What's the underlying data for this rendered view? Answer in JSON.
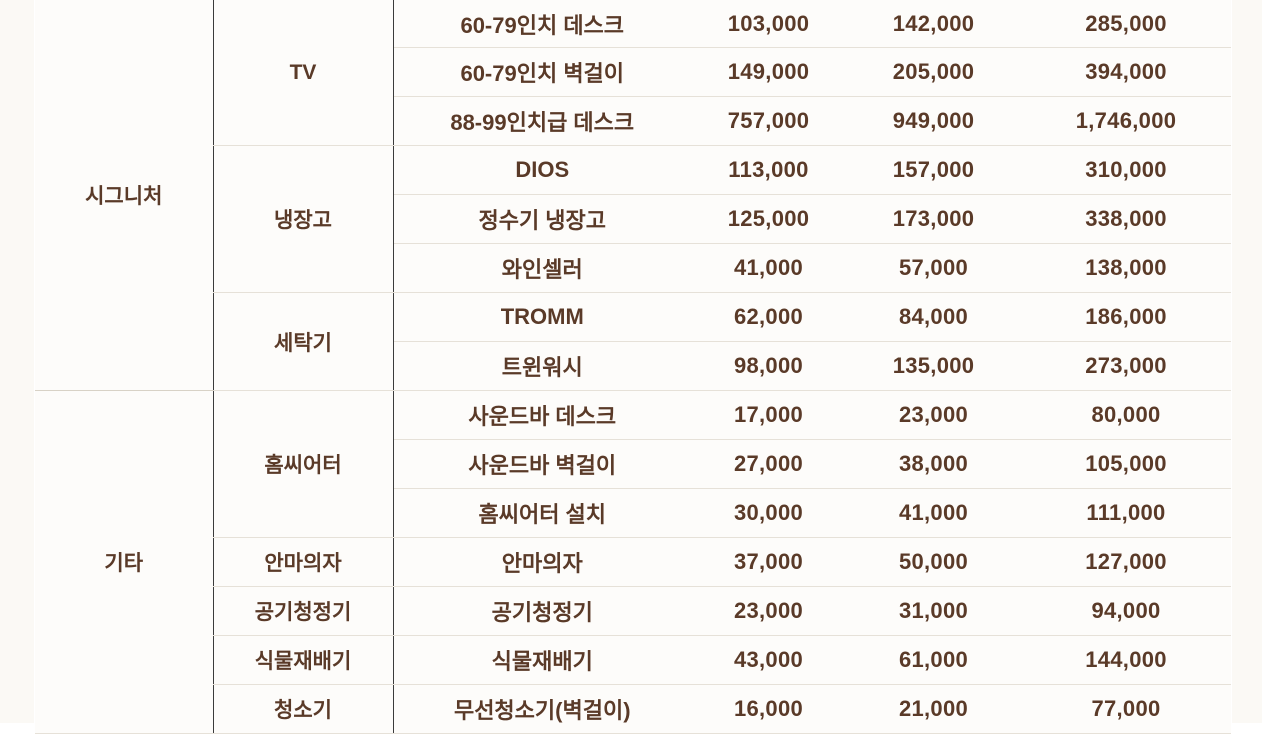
{
  "categories": [
    {
      "name": "시그니처",
      "groups": [
        {
          "name": "TV",
          "rows": [
            {
              "item": "60-79인치 데스크",
              "v1": "103,000",
              "v2": "142,000",
              "v3": "285,000"
            },
            {
              "item": "60-79인치 벽걸이",
              "v1": "149,000",
              "v2": "205,000",
              "v3": "394,000"
            },
            {
              "item": "88-99인치급 데스크",
              "v1": "757,000",
              "v2": "949,000",
              "v3": "1,746,000"
            }
          ]
        },
        {
          "name": "냉장고",
          "rows": [
            {
              "item": "DIOS",
              "v1": "113,000",
              "v2": "157,000",
              "v3": "310,000"
            },
            {
              "item": "정수기 냉장고",
              "v1": "125,000",
              "v2": "173,000",
              "v3": "338,000"
            },
            {
              "item": "와인셀러",
              "v1": "41,000",
              "v2": "57,000",
              "v3": "138,000"
            }
          ]
        },
        {
          "name": "세탁기",
          "rows": [
            {
              "item": "TROMM",
              "v1": "62,000",
              "v2": "84,000",
              "v3": "186,000"
            },
            {
              "item": "트윈워시",
              "v1": "98,000",
              "v2": "135,000",
              "v3": "273,000"
            }
          ]
        }
      ]
    },
    {
      "name": "기타",
      "groups": [
        {
          "name": "홈씨어터",
          "rows": [
            {
              "item": "사운드바 데스크",
              "v1": "17,000",
              "v2": "23,000",
              "v3": "80,000"
            },
            {
              "item": "사운드바 벽걸이",
              "v1": "27,000",
              "v2": "38,000",
              "v3": "105,000"
            },
            {
              "item": "홈씨어터 설치",
              "v1": "30,000",
              "v2": "41,000",
              "v3": "111,000"
            }
          ]
        },
        {
          "name": "안마의자",
          "rows": [
            {
              "item": "안마의자",
              "v1": "37,000",
              "v2": "50,000",
              "v3": "127,000"
            }
          ]
        },
        {
          "name": "공기청정기",
          "rows": [
            {
              "item": "공기청정기",
              "v1": "23,000",
              "v2": "31,000",
              "v3": "94,000"
            }
          ]
        },
        {
          "name": "식물재배기",
          "rows": [
            {
              "item": "식물재배기",
              "v1": "43,000",
              "v2": "61,000",
              "v3": "144,000"
            }
          ]
        },
        {
          "name": "청소기",
          "rows": [
            {
              "item": "무선청소기(벽걸이)",
              "v1": "16,000",
              "v2": "21,000",
              "v3": "77,000"
            }
          ]
        }
      ]
    }
  ],
  "colors": {
    "text": "#5a3a28",
    "row_divider": "#e6e1d8",
    "column_divider": "#3b3b3b",
    "background": "#fdfcfa"
  }
}
